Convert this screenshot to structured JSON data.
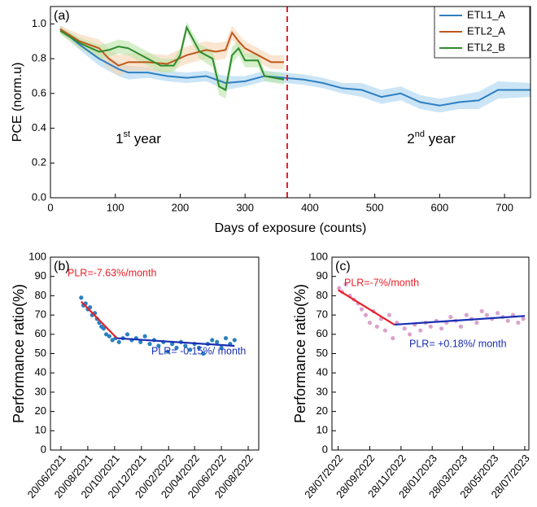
{
  "chart_data": [
    {
      "type": "line",
      "panel": "(a)",
      "xlabel": "Days of exposure (counts)",
      "ylabel": "PCE (norm.u)",
      "xlim": [
        0,
        740
      ],
      "ylim": [
        0,
        1.1
      ],
      "xticks": [
        0,
        100,
        200,
        300,
        400,
        500,
        600,
        700
      ],
      "yticks": [
        {
          "value": 0,
          "label": "0.0"
        },
        {
          "value": 0.2,
          "label": "0.2"
        },
        {
          "value": 0.4,
          "label": "0.4"
        },
        {
          "value": 0.6,
          "label": "0.6"
        },
        {
          "value": 0.8,
          "label": "0.8"
        },
        {
          "value": 1,
          "label": "1.0"
        }
      ],
      "legend": "upper right",
      "divider_x": 365,
      "divider_color": "#e8202a",
      "year_labels": [
        {
          "base": "1",
          "sup": "st",
          "tail": " year"
        },
        {
          "base": "2",
          "sup": "nd",
          "tail": " year"
        }
      ],
      "series": [
        {
          "name": "ETL1_A",
          "color": "#2f7fc1",
          "band_color": "#a9d3f0",
          "x": [
            15,
            45,
            75,
            105,
            120,
            150,
            180,
            210,
            240,
            270,
            300,
            330,
            360,
            390,
            420,
            450,
            480,
            510,
            540,
            570,
            600,
            630,
            660,
            690,
            740
          ],
          "values": [
            0.97,
            0.88,
            0.8,
            0.74,
            0.72,
            0.72,
            0.7,
            0.69,
            0.7,
            0.66,
            0.67,
            0.7,
            0.69,
            0.68,
            0.66,
            0.63,
            0.62,
            0.58,
            0.6,
            0.55,
            0.53,
            0.55,
            0.56,
            0.62,
            0.62
          ],
          "errors": [
            0.02,
            0.03,
            0.04,
            0.04,
            0.04,
            0.03,
            0.03,
            0.03,
            0.03,
            0.04,
            0.03,
            0.03,
            0.03,
            0.03,
            0.03,
            0.03,
            0.04,
            0.04,
            0.04,
            0.04,
            0.04,
            0.04,
            0.05,
            0.05,
            0.04
          ]
        },
        {
          "name": "ETL2_A",
          "color": "#c0571b",
          "band_color": "#f6d3b0",
          "x": [
            15,
            45,
            75,
            90,
            105,
            120,
            150,
            180,
            210,
            240,
            255,
            270,
            280,
            290,
            300,
            320,
            340,
            360
          ],
          "values": [
            0.97,
            0.9,
            0.86,
            0.8,
            0.76,
            0.78,
            0.78,
            0.77,
            0.82,
            0.85,
            0.84,
            0.85,
            0.95,
            0.9,
            0.86,
            0.82,
            0.78,
            0.78
          ],
          "errors": [
            0.02,
            0.04,
            0.05,
            0.06,
            0.06,
            0.05,
            0.05,
            0.05,
            0.05,
            0.05,
            0.05,
            0.05,
            0.04,
            0.04,
            0.04,
            0.04,
            0.04,
            0.04
          ]
        },
        {
          "name": "ETL2_B",
          "color": "#2e8b2e",
          "band_color": "#b9e4a6",
          "x": [
            15,
            45,
            75,
            90,
            105,
            120,
            150,
            170,
            190,
            200,
            210,
            230,
            250,
            260,
            270,
            280,
            290,
            300,
            320,
            330,
            360
          ],
          "values": [
            0.96,
            0.89,
            0.84,
            0.85,
            0.87,
            0.86,
            0.8,
            0.76,
            0.76,
            0.82,
            0.98,
            0.84,
            0.8,
            0.64,
            0.62,
            0.82,
            0.86,
            0.79,
            0.79,
            0.7,
            0.68
          ],
          "errors": [
            0.02,
            0.03,
            0.04,
            0.04,
            0.04,
            0.04,
            0.04,
            0.04,
            0.04,
            0.04,
            0.03,
            0.04,
            0.05,
            0.05,
            0.05,
            0.05,
            0.04,
            0.04,
            0.04,
            0.03,
            0.03
          ]
        }
      ]
    },
    {
      "type": "scatter",
      "panel": "(b)",
      "ylabel": "Performance ratio(%)",
      "xlim": [
        "2021-05-27",
        "2022-09-13"
      ],
      "ylim": [
        0,
        100
      ],
      "xticks": [
        {
          "value": "2021-06-20",
          "label": "20/06/2021"
        },
        {
          "value": "2021-08-20",
          "label": "20/08/2021"
        },
        {
          "value": "2021-10-20",
          "label": "20/10/2021"
        },
        {
          "value": "2021-12-20",
          "label": "20/12/2021"
        },
        {
          "value": "2022-02-20",
          "label": "20/02/2022"
        },
        {
          "value": "2022-04-20",
          "label": "20/04/2022"
        },
        {
          "value": "2022-06-20",
          "label": "20/06/2022"
        },
        {
          "value": "2022-08-20",
          "label": "20/08/2022"
        }
      ],
      "yticks": [
        0,
        10,
        20,
        30,
        40,
        50,
        60,
        70,
        80,
        90,
        100
      ],
      "color": "#2a80c0",
      "x": [
        "2021-08-05",
        "2021-08-10",
        "2021-08-15",
        "2021-08-20",
        "2021-08-25",
        "2021-08-30",
        "2021-09-05",
        "2021-09-10",
        "2021-09-15",
        "2021-09-20",
        "2021-09-25",
        "2021-10-01",
        "2021-10-08",
        "2021-10-15",
        "2021-10-22",
        "2021-10-30",
        "2021-11-08",
        "2021-11-18",
        "2021-11-28",
        "2021-12-08",
        "2021-12-18",
        "2021-12-28",
        "2022-01-08",
        "2022-01-18",
        "2022-01-28",
        "2022-02-08",
        "2022-02-18",
        "2022-02-28",
        "2022-03-10",
        "2022-03-20",
        "2022-03-30",
        "2022-04-10",
        "2022-04-20",
        "2022-04-30",
        "2022-05-10",
        "2022-05-20",
        "2022-05-30",
        "2022-06-10",
        "2022-06-20",
        "2022-06-30",
        "2022-07-10",
        "2022-07-20"
      ],
      "values": [
        79,
        75,
        76,
        73,
        74,
        70,
        71,
        68,
        66,
        64,
        63,
        60,
        59,
        57,
        58,
        56,
        58,
        60,
        57,
        58,
        56,
        59,
        55,
        57,
        54,
        56,
        51,
        55,
        53,
        56,
        54,
        52,
        55,
        53,
        50,
        55,
        57,
        56,
        53,
        58,
        55,
        57
      ],
      "fits": [
        {
          "label": "PLR=-7.63%/month",
          "color": "#e8202a",
          "x": [
            "2021-08-05",
            "2021-10-25"
          ],
          "values": [
            77,
            58
          ]
        },
        {
          "label": "PLR= -0.15%/ month",
          "color": "#1a2fb5",
          "x": [
            "2021-10-25",
            "2022-07-20"
          ],
          "values": [
            58,
            54
          ]
        }
      ]
    },
    {
      "type": "scatter",
      "panel": "(c)",
      "ylabel": "Performance ratio(%)",
      "xlim": [
        "2022-07-16",
        "2023-08-05"
      ],
      "ylim": [
        0,
        100
      ],
      "xticks": [
        {
          "value": "2022-07-28",
          "label": "28/07/2022"
        },
        {
          "value": "2022-09-28",
          "label": "28/09/2022"
        },
        {
          "value": "2022-11-28",
          "label": "28/11/2022"
        },
        {
          "value": "2023-01-28",
          "label": "28/01/2023"
        },
        {
          "value": "2023-03-28",
          "label": "28/03/2023"
        },
        {
          "value": "2023-05-28",
          "label": "28/05/2023"
        },
        {
          "value": "2023-07-28",
          "label": "28/07/2023"
        }
      ],
      "yticks": [
        0,
        10,
        20,
        30,
        40,
        50,
        60,
        70,
        80,
        90,
        100
      ],
      "color": "#dba3cc",
      "x": [
        "2022-07-30",
        "2022-08-05",
        "2022-08-12",
        "2022-08-20",
        "2022-08-28",
        "2022-09-05",
        "2022-09-12",
        "2022-09-20",
        "2022-09-28",
        "2022-10-05",
        "2022-10-12",
        "2022-10-20",
        "2022-10-28",
        "2022-11-05",
        "2022-11-12",
        "2022-11-20",
        "2022-12-05",
        "2022-12-15",
        "2022-12-25",
        "2023-01-05",
        "2023-01-15",
        "2023-01-25",
        "2023-02-05",
        "2023-02-15",
        "2023-02-25",
        "2023-03-05",
        "2023-03-15",
        "2023-03-25",
        "2023-04-05",
        "2023-04-15",
        "2023-04-25",
        "2023-05-05",
        "2023-05-15",
        "2023-05-25",
        "2023-06-05",
        "2023-06-15",
        "2023-06-25",
        "2023-07-05",
        "2023-07-15",
        "2023-07-25"
      ],
      "values": [
        84,
        82,
        86,
        80,
        78,
        76,
        73,
        70,
        66,
        72,
        64,
        68,
        62,
        70,
        58,
        66,
        63,
        60,
        65,
        62,
        66,
        64,
        67,
        63,
        66,
        69,
        67,
        64,
        70,
        68,
        66,
        72,
        70,
        68,
        71,
        69,
        67,
        70,
        66,
        68
      ],
      "fits": [
        {
          "label": "PLR=-7%/month",
          "color": "#e8202a",
          "x": [
            "2022-07-28",
            "2022-11-15"
          ],
          "values": [
            83,
            65
          ]
        },
        {
          "label": "PLR= +0.18%/ month",
          "color": "#1a2fb5",
          "x": [
            "2022-11-15",
            "2023-07-28"
          ],
          "values": [
            65,
            69.5
          ]
        }
      ]
    }
  ]
}
